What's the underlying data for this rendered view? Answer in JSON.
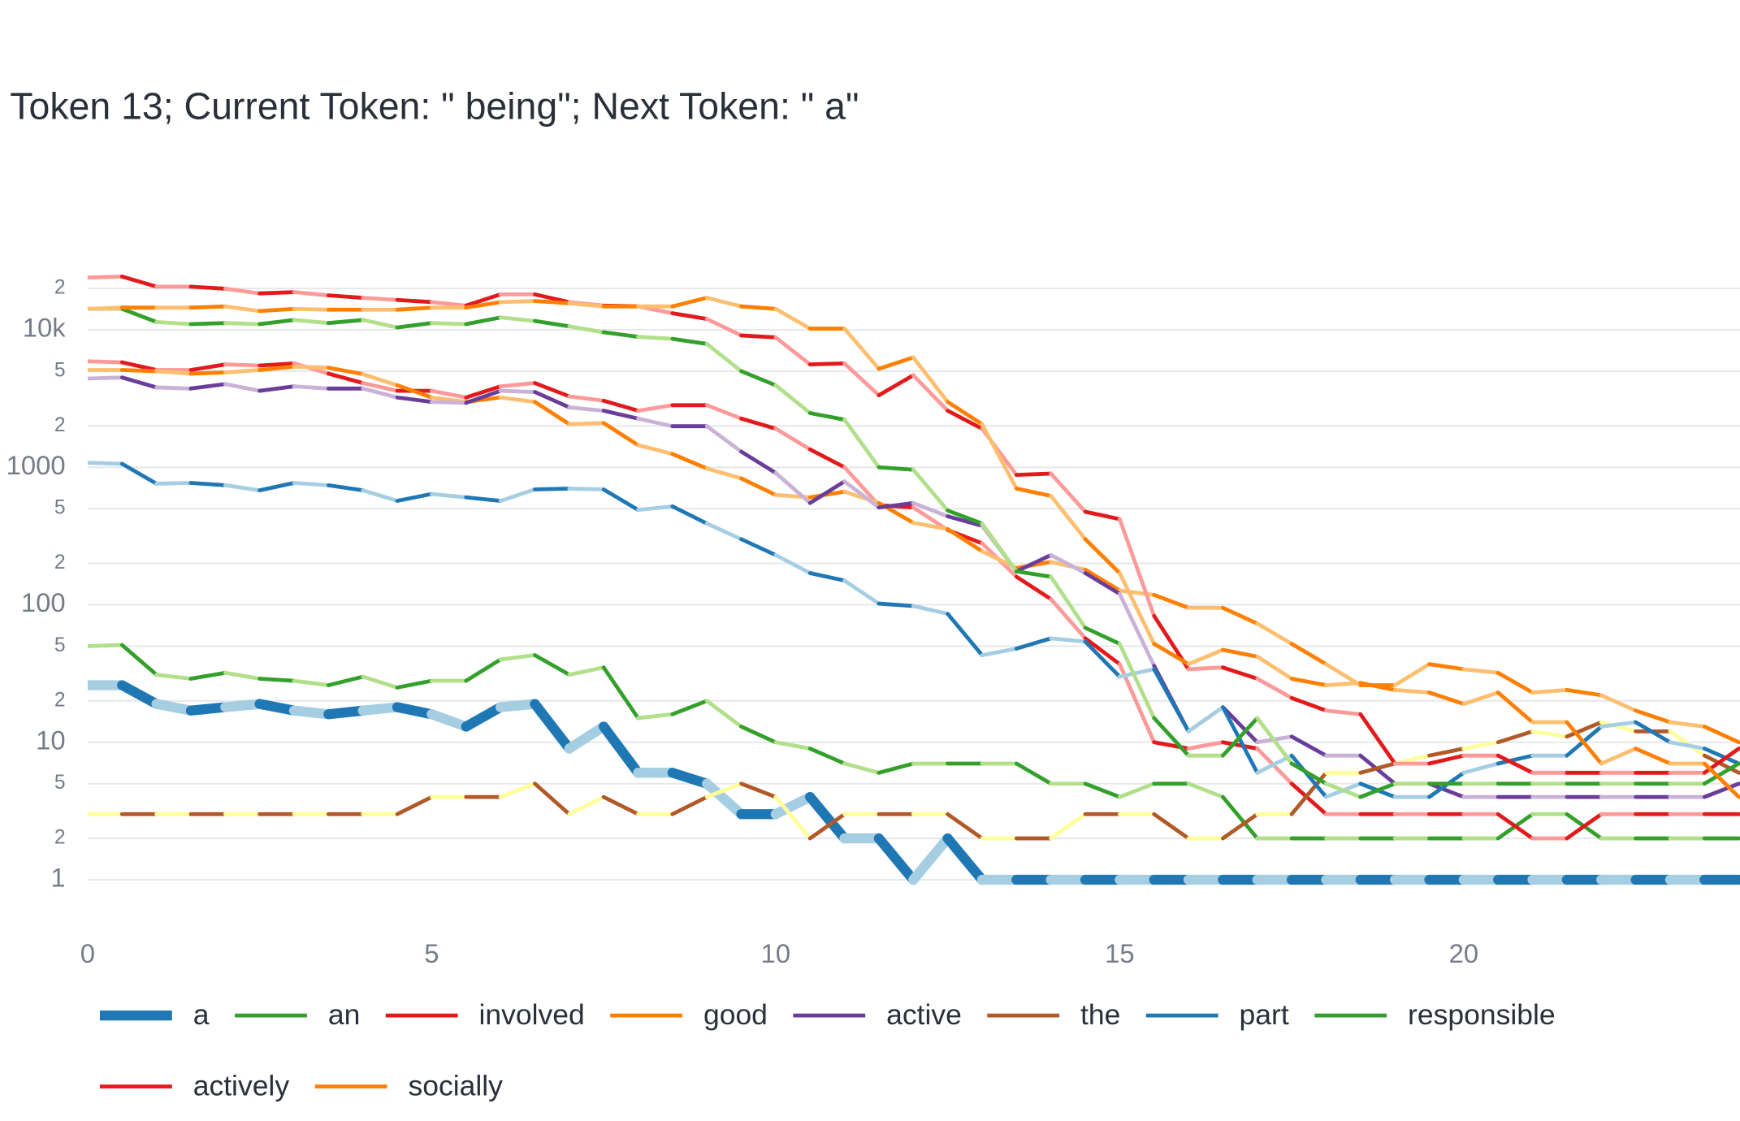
{
  "chart_data": {
    "type": "line",
    "title": "Token 13; Current Token: \" being\"; Next Token: \" a\"",
    "log_y": true,
    "grid": true,
    "xlim": [
      0,
      24
    ],
    "xticks": [
      0,
      5,
      10,
      15,
      20
    ],
    "ylim": [
      0.5,
      30000
    ],
    "yticks": [
      1,
      2,
      {
        "value": 5,
        "label": "5"
      },
      10,
      {
        "value": 20,
        "label": "2"
      },
      {
        "value": 50,
        "label": "5"
      },
      100,
      {
        "value": 200,
        "label": "2"
      },
      {
        "value": 500,
        "label": "5"
      },
      1000,
      {
        "value": 2000,
        "label": "2"
      },
      {
        "value": 5000,
        "label": "5"
      },
      {
        "value": 10000,
        "label": "10k"
      },
      {
        "value": 20000,
        "label": "2"
      }
    ],
    "x": [
      0,
      0.5,
      1,
      1.5,
      2,
      2.5,
      3,
      3.5,
      4,
      4.5,
      5,
      5.5,
      6,
      6.5,
      7,
      7.5,
      8,
      8.5,
      9,
      9.5,
      10,
      10.5,
      11,
      11.5,
      12,
      12.5,
      13,
      13.5,
      14,
      14.5,
      15,
      15.5,
      16,
      16.5,
      17,
      17.5,
      18,
      18.5,
      19,
      19.5,
      20,
      20.5,
      21,
      21.5,
      22,
      22.5,
      23,
      23.5,
      24
    ],
    "series": [
      {
        "name": "a",
        "colors": [
          "#a6cee3",
          "#1f78b4"
        ],
        "width": 9,
        "values": [
          26,
          26,
          19,
          17,
          18,
          19,
          17,
          16,
          17,
          18,
          16,
          13,
          18,
          19,
          9,
          13,
          6,
          6,
          5,
          3,
          3,
          4,
          2,
          2,
          1,
          2,
          1,
          1,
          1,
          1,
          1,
          1,
          1,
          1,
          1,
          1,
          1,
          1,
          1,
          1,
          1,
          1,
          1,
          1,
          1,
          1,
          1,
          1,
          1
        ]
      },
      {
        "name": "an",
        "colors": [
          "#b2df8a",
          "#33a02c"
        ],
        "width": 3.5,
        "values": [
          50,
          51,
          31,
          29,
          32,
          29,
          28,
          26,
          30,
          25,
          28,
          28,
          40,
          43,
          31,
          35,
          15,
          16,
          20,
          13,
          10,
          9,
          7,
          6,
          7,
          7,
          7,
          7,
          5,
          5,
          4,
          5,
          5,
          4,
          2,
          2,
          2,
          2,
          2,
          2,
          2,
          2,
          3,
          3,
          2,
          2,
          2,
          2,
          2
        ]
      },
      {
        "name": "involved",
        "colors": [
          "#fb9a99",
          "#e31a1c"
        ],
        "width": 3.5,
        "values": [
          5900,
          5800,
          5100,
          5100,
          5600,
          5500,
          5700,
          4800,
          4100,
          3600,
          3600,
          3220,
          3880,
          4100,
          3280,
          3050,
          2580,
          2830,
          2830,
          2260,
          1910,
          1350,
          1000,
          530,
          510,
          350,
          280,
          160,
          110,
          57,
          37,
          10,
          9,
          10,
          9,
          5,
          3,
          3,
          3,
          3,
          3,
          3,
          2,
          2,
          3,
          3,
          3,
          3,
          3
        ]
      },
      {
        "name": "good",
        "colors": [
          "#fdbf6f",
          "#ff7f00"
        ],
        "width": 3.5,
        "values": [
          5100,
          5100,
          5000,
          4800,
          4900,
          5100,
          5400,
          5300,
          4760,
          3950,
          3220,
          2990,
          3220,
          2990,
          2060,
          2100,
          1450,
          1250,
          980,
          830,
          630,
          605,
          665,
          550,
          395,
          355,
          245,
          185,
          205,
          180,
          127,
          118,
          95,
          95,
          73,
          52,
          37,
          26,
          26,
          37,
          34,
          32,
          23,
          24,
          22,
          17,
          14,
          13,
          10
        ]
      },
      {
        "name": "active",
        "colors": [
          "#cab2d6",
          "#6a3d9a"
        ],
        "width": 3.5,
        "values": [
          4420,
          4500,
          3810,
          3740,
          4030,
          3600,
          3880,
          3740,
          3740,
          3220,
          2990,
          2940,
          3600,
          3530,
          2730,
          2580,
          2260,
          1990,
          1990,
          1300,
          910,
          550,
          790,
          510,
          550,
          440,
          375,
          175,
          230,
          170,
          120,
          36,
          12,
          18,
          10,
          11,
          8,
          8,
          5,
          5,
          4,
          4,
          4,
          4,
          4,
          4,
          4,
          4,
          5
        ]
      },
      {
        "name": "the",
        "colors": [
          "#ffff99",
          "#b15928"
        ],
        "width": 3.5,
        "values": [
          3,
          3,
          3,
          3,
          3,
          3,
          3,
          3,
          3,
          3,
          4,
          4,
          4,
          5,
          3,
          4,
          3,
          3,
          4,
          5,
          4,
          2,
          3,
          3,
          3,
          3,
          2,
          2,
          2,
          3,
          3,
          3,
          2,
          2,
          3,
          3,
          6,
          6,
          7,
          8,
          9,
          10,
          12,
          11,
          14,
          12,
          12,
          8,
          6
        ]
      },
      {
        "name": "part",
        "colors": [
          "#a6cee3",
          "#1f78b4"
        ],
        "width": 3.5,
        "values": [
          1080,
          1060,
          760,
          770,
          740,
          680,
          770,
          740,
          680,
          570,
          640,
          605,
          570,
          690,
          700,
          690,
          490,
          520,
          390,
          300,
          230,
          170,
          150,
          102,
          98,
          86,
          43,
          48,
          57,
          54,
          30,
          34,
          12,
          18,
          6,
          8,
          4,
          5,
          4,
          4,
          6,
          7,
          8,
          8,
          13,
          14,
          10,
          9,
          7
        ]
      },
      {
        "name": "responsible",
        "colors": [
          "#b2df8a",
          "#33a02c"
        ],
        "width": 3.5,
        "values": [
          14200,
          14200,
          11400,
          11000,
          11200,
          11000,
          11800,
          11200,
          11800,
          10400,
          11200,
          11000,
          12300,
          11600,
          10600,
          9600,
          8900,
          8600,
          7900,
          5000,
          3950,
          2480,
          2220,
          1000,
          960,
          485,
          390,
          175,
          160,
          68,
          52,
          15,
          8,
          8,
          15,
          7,
          5,
          4,
          5,
          5,
          5,
          5,
          5,
          5,
          5,
          5,
          5,
          5,
          7
        ]
      },
      {
        "name": "actively",
        "colors": [
          "#fb9a99",
          "#e31a1c"
        ],
        "width": 3.5,
        "values": [
          24000,
          24400,
          20600,
          20600,
          19900,
          18400,
          18800,
          17800,
          17100,
          16500,
          15900,
          15000,
          18100,
          18100,
          15900,
          15000,
          14800,
          13200,
          12000,
          9100,
          8800,
          5600,
          5700,
          3340,
          4670,
          2580,
          1910,
          880,
          900,
          475,
          420,
          83,
          34,
          35,
          29,
          21,
          17,
          16,
          7,
          7,
          8,
          8,
          6,
          6,
          6,
          6,
          6,
          6,
          9
        ]
      },
      {
        "name": "socially",
        "colors": [
          "#fdbf6f",
          "#ff7f00"
        ],
        "width": 3.5,
        "values": [
          14200,
          14500,
          14500,
          14500,
          14800,
          13700,
          14200,
          14000,
          14000,
          14000,
          14500,
          14500,
          15900,
          16200,
          15600,
          14800,
          14800,
          14800,
          17100,
          14800,
          14200,
          10200,
          10200,
          5200,
          6300,
          2990,
          2060,
          700,
          620,
          300,
          170,
          52,
          37,
          47,
          42,
          29,
          26,
          27,
          24,
          23,
          19,
          23,
          14,
          14,
          7,
          9,
          7,
          7,
          4
        ]
      }
    ]
  }
}
